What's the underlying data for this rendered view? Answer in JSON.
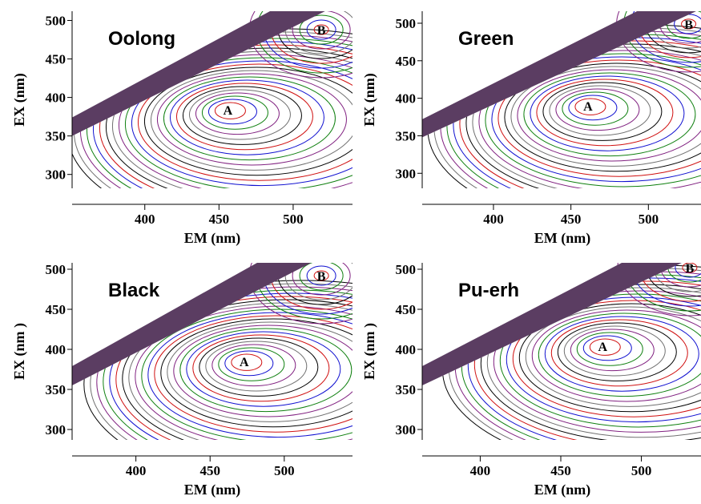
{
  "chart_data": [
    {
      "type": "contour",
      "title": "Oolong",
      "x_label": "EM (nm)",
      "y_label": "EX (nm)",
      "xlim": [
        351,
        540
      ],
      "ylim": [
        282,
        512
      ],
      "xticks": [
        400,
        450,
        500
      ],
      "yticks": [
        300,
        350,
        400,
        450,
        500
      ],
      "annotations": [
        {
          "text": "A",
          "x": 456,
          "y": 384
        },
        {
          "text": "B",
          "x": 519,
          "y": 488
        }
      ],
      "contour_colors": [
        "#000000",
        "#d01010",
        "#1010d0",
        "#108010",
        "#802080",
        "#707070"
      ]
    },
    {
      "type": "contour",
      "title": "Green",
      "x_label": "EM (nm)",
      "y_label": "EX (nm)",
      "xlim": [
        354,
        535
      ],
      "ylim": [
        280,
        516
      ],
      "xticks": [
        400,
        450,
        500
      ],
      "yticks": [
        300,
        350,
        400,
        450,
        500
      ],
      "annotations": [
        {
          "text": "A",
          "x": 461,
          "y": 390
        },
        {
          "text": "B",
          "x": 526,
          "y": 499
        }
      ],
      "contour_colors": [
        "#000000",
        "#d01010",
        "#1010d0",
        "#108010",
        "#802080",
        "#707070"
      ]
    },
    {
      "type": "contour",
      "title": "Black",
      "x_label": "EM (nm)",
      "y_label": "EX (nm )",
      "xlim": [
        357,
        546
      ],
      "ylim": [
        287,
        508
      ],
      "xticks": [
        400,
        450,
        500
      ],
      "yticks": [
        300,
        350,
        400,
        450,
        500
      ],
      "annotations": [
        {
          "text": "A",
          "x": 473,
          "y": 385
        },
        {
          "text": "B",
          "x": 525,
          "y": 492
        }
      ],
      "contour_colors": [
        "#000000",
        "#d01010",
        "#1010d0",
        "#108010",
        "#802080",
        "#707070"
      ]
    },
    {
      "type": "contour",
      "title": "Pu-erh",
      "x_label": "EM (nm)",
      "y_label": "EX (nm )",
      "xlim": [
        364,
        538
      ],
      "ylim": [
        287,
        508
      ],
      "xticks": [
        400,
        450,
        500
      ],
      "yticks": [
        300,
        350,
        400,
        450,
        500
      ],
      "annotations": [
        {
          "text": "A",
          "x": 476,
          "y": 404
        },
        {
          "text": "B",
          "x": 530,
          "y": 502
        }
      ],
      "contour_colors": [
        "#000000",
        "#d01010",
        "#1010d0",
        "#108010",
        "#802080",
        "#707070"
      ]
    }
  ]
}
